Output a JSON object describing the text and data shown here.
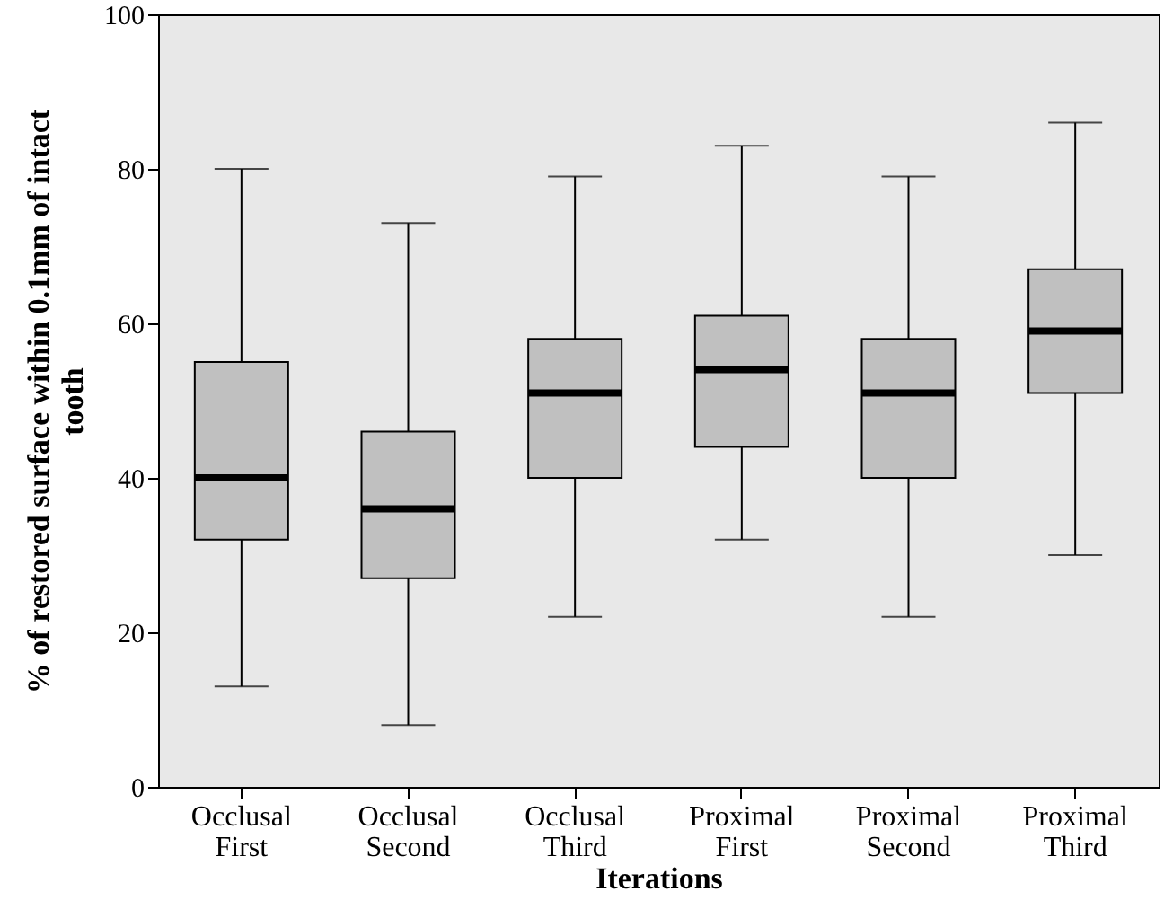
{
  "chart_data": {
    "type": "box",
    "xlabel": "Iterations",
    "ylabel": "% of restored surface within 0.1mm of intact tooth",
    "categories": [
      "Occlusal First",
      "Occlusal Second",
      "Occlusal Third",
      "Proximal First",
      "Proximal Second",
      "Proximal Third"
    ],
    "color": "#c0c0c0",
    "boxes": [
      {
        "low": 13,
        "q1": 32,
        "median": 40,
        "q3": 55,
        "high": 80
      },
      {
        "low": 8,
        "q1": 27,
        "median": 36,
        "q3": 46,
        "high": 73
      },
      {
        "low": 22,
        "q1": 40,
        "median": 51,
        "q3": 58,
        "high": 79
      },
      {
        "low": 32,
        "q1": 44,
        "median": 54,
        "q3": 61,
        "high": 83
      },
      {
        "low": 22,
        "q1": 40,
        "median": 51,
        "q3": 58,
        "high": 79
      },
      {
        "low": 30,
        "q1": 51,
        "median": 59,
        "q3": 67,
        "high": 86
      }
    ],
    "ylim": [
      0,
      100
    ],
    "yticks": [
      0,
      20,
      40,
      60,
      80,
      100
    ],
    "grid": false
  }
}
